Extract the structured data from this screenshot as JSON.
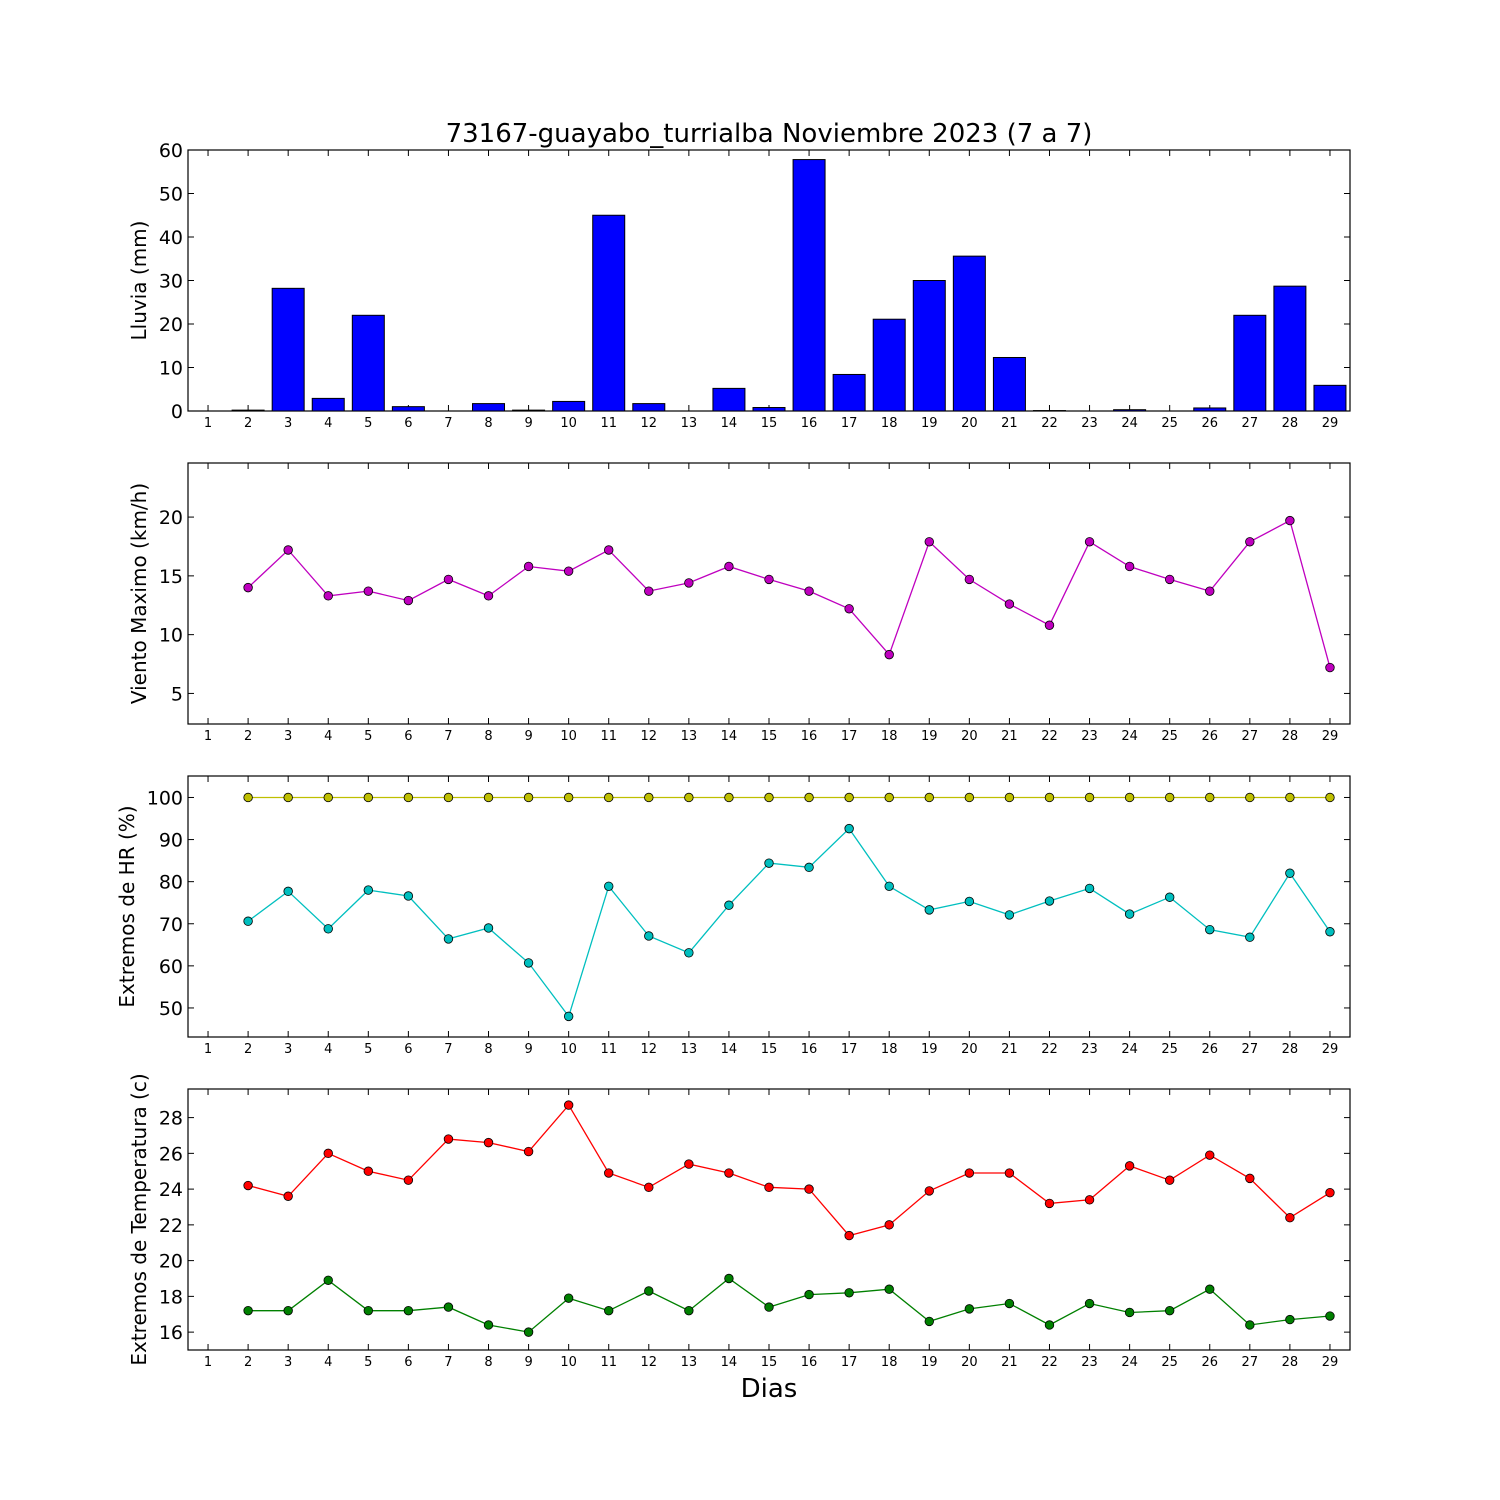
{
  "title": "73167-guayabo_turrialba Noviembre 2023  (7 a 7)",
  "xlabel": "Dias",
  "chart_data": [
    {
      "type": "bar",
      "ylabel": "Lluvia (mm)",
      "ylim": [
        0,
        60
      ],
      "yticks": [
        0,
        10,
        20,
        30,
        40,
        50,
        60
      ],
      "x": [
        1,
        2,
        3,
        4,
        5,
        6,
        7,
        8,
        9,
        10,
        11,
        12,
        13,
        14,
        15,
        16,
        17,
        18,
        19,
        20,
        21,
        22,
        23,
        24,
        25,
        26,
        27,
        28,
        29
      ],
      "series": [
        {
          "color": "#0000ff",
          "values": [
            0,
            0.2,
            28.2,
            2.9,
            22.0,
            1.0,
            0,
            1.7,
            0.2,
            2.2,
            45.0,
            1.7,
            0,
            5.2,
            0.8,
            57.8,
            8.4,
            21.1,
            30.0,
            35.6,
            12.3,
            0.1,
            0,
            0.3,
            0,
            0.7,
            22.0,
            28.7,
            5.9
          ]
        }
      ]
    },
    {
      "type": "line",
      "ylabel": "Viento Maximo (km/h)",
      "ylim": [
        2.4,
        24.6
      ],
      "yticks": [
        5,
        10,
        15,
        20
      ],
      "x": [
        2,
        3,
        4,
        5,
        6,
        7,
        8,
        9,
        10,
        11,
        12,
        13,
        14,
        15,
        16,
        17,
        18,
        19,
        20,
        21,
        22,
        23,
        24,
        25,
        26,
        27,
        28,
        29
      ],
      "series": [
        {
          "color": "#bf00bf",
          "values": [
            14.0,
            17.2,
            13.3,
            13.7,
            12.9,
            14.7,
            13.3,
            15.8,
            15.4,
            17.2,
            13.7,
            14.4,
            15.8,
            14.7,
            13.7,
            12.2,
            8.3,
            17.9,
            14.7,
            12.6,
            10.8,
            17.9,
            15.8,
            14.7,
            13.7,
            17.9,
            19.7,
            7.2
          ]
        }
      ]
    },
    {
      "type": "line",
      "ylabel": "Extremos de HR (%)",
      "ylim": [
        43.1,
        105.1
      ],
      "yticks": [
        50,
        60,
        70,
        80,
        90,
        100
      ],
      "x": [
        2,
        3,
        4,
        5,
        6,
        7,
        8,
        9,
        10,
        11,
        12,
        13,
        14,
        15,
        16,
        17,
        18,
        19,
        20,
        21,
        22,
        23,
        24,
        25,
        26,
        27,
        28,
        29
      ],
      "series": [
        {
          "color": "#bfbf00",
          "values": [
            100,
            100,
            100,
            100,
            100,
            100,
            100,
            100,
            100,
            100,
            100,
            100,
            100,
            100,
            100,
            100,
            100,
            100,
            100,
            100,
            100,
            100,
            100,
            100,
            100,
            100,
            100,
            100
          ]
        },
        {
          "color": "#00bfbf",
          "values": [
            70.6,
            77.7,
            68.8,
            78.0,
            76.6,
            66.4,
            69.0,
            60.7,
            48.0,
            78.9,
            67.1,
            63.1,
            74.4,
            84.4,
            83.4,
            92.6,
            78.9,
            73.3,
            75.3,
            72.1,
            75.4,
            78.4,
            72.3,
            76.3,
            68.6,
            66.8,
            82.0,
            68.1
          ]
        }
      ]
    },
    {
      "type": "line",
      "ylabel": "Extremos de Temperatura (c)",
      "ylim": [
        15.0,
        29.6
      ],
      "yticks": [
        16,
        18,
        20,
        22,
        24,
        26,
        28
      ],
      "x": [
        2,
        3,
        4,
        5,
        6,
        7,
        8,
        9,
        10,
        11,
        12,
        13,
        14,
        15,
        16,
        17,
        18,
        19,
        20,
        21,
        22,
        23,
        24,
        25,
        26,
        27,
        28,
        29
      ],
      "series": [
        {
          "color": "#ff0000",
          "values": [
            24.2,
            23.6,
            26.0,
            25.0,
            24.5,
            26.8,
            26.6,
            26.1,
            28.7,
            24.9,
            24.1,
            25.4,
            24.9,
            24.1,
            24.0,
            21.4,
            22.0,
            23.9,
            24.9,
            24.9,
            23.2,
            23.4,
            25.3,
            24.5,
            25.9,
            24.6,
            22.4,
            23.8
          ]
        },
        {
          "color": "#008000",
          "values": [
            17.2,
            17.2,
            18.9,
            17.2,
            17.2,
            17.4,
            16.4,
            16.0,
            17.9,
            17.2,
            18.3,
            17.2,
            19.0,
            17.4,
            18.1,
            18.2,
            18.4,
            16.6,
            17.3,
            17.6,
            16.4,
            17.6,
            17.1,
            17.2,
            18.4,
            16.4,
            16.7,
            16.9
          ]
        }
      ]
    }
  ]
}
